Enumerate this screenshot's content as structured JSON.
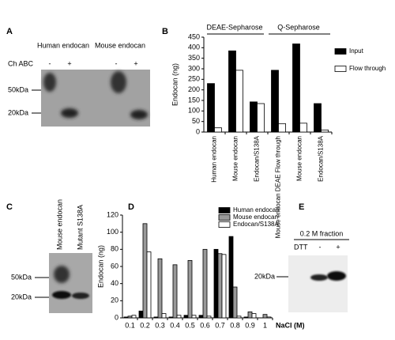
{
  "panels": {
    "a": {
      "label": "A",
      "lanes": [
        "Human endocan",
        "Mouse endocan"
      ],
      "treatment": "Ch ABC",
      "signs": [
        "-",
        "+",
        "-",
        "+"
      ],
      "markers": [
        "50kDa",
        "20kDa"
      ]
    },
    "c": {
      "label": "C",
      "lanes": [
        "Mouse endocan",
        "Mutant S138A"
      ],
      "markers": [
        "50kDa",
        "20kDa"
      ]
    },
    "e": {
      "label": "E",
      "title": "0.2 M fraction",
      "treatment": "DTT",
      "signs": [
        "-",
        "+"
      ],
      "markers": [
        "20kDa"
      ]
    }
  },
  "chart_data": [
    {
      "type": "bar",
      "panel_label": "B",
      "ylabel": "Endocan (ng)",
      "group_labels": [
        "DEAE-Sepharose",
        "Q-Sepharose"
      ],
      "categories": [
        "Human endocan",
        "Mouse endocan",
        "Endocan/S138A",
        "Mouse endocan DEAE Flow through",
        "Mouse endocan",
        "Endocan/S138A"
      ],
      "series": [
        {
          "name": "Input",
          "color": "#000000",
          "values": [
            230,
            385,
            143,
            293,
            418,
            135
          ]
        },
        {
          "name": "Flow through",
          "color": "#ffffff",
          "values": [
            20,
            293,
            135,
            40,
            42,
            10
          ]
        }
      ],
      "ylim": [
        0,
        450
      ],
      "yticks": [
        0,
        50,
        100,
        150,
        200,
        250,
        300,
        350,
        400,
        450
      ],
      "legend": "right"
    },
    {
      "type": "bar",
      "panel_label": "D",
      "ylabel": "Endocan (ng)",
      "xlabel": "NaCl (M)",
      "categories": [
        "0.1",
        "0.2",
        "0.3",
        "0.4",
        "0.5",
        "0.6",
        "0.7",
        "0.8",
        "0.9",
        "1"
      ],
      "series": [
        {
          "name": "Human endocan",
          "color": "#000000",
          "values": [
            1,
            8,
            1,
            1,
            3,
            3,
            80,
            95,
            1,
            0
          ]
        },
        {
          "name": "Mouse endocan",
          "color": "#999999",
          "values": [
            2,
            110,
            69,
            62,
            67,
            80,
            75,
            36,
            7,
            4
          ]
        },
        {
          "name": "Endocan/S138A",
          "color": "#ffffff",
          "values": [
            3,
            77,
            5,
            3,
            3,
            2,
            74,
            2,
            5,
            1
          ]
        }
      ],
      "ylim": [
        0,
        120
      ],
      "yticks": [
        0,
        20,
        40,
        60,
        80,
        100,
        120
      ],
      "legend": "upper right"
    }
  ]
}
